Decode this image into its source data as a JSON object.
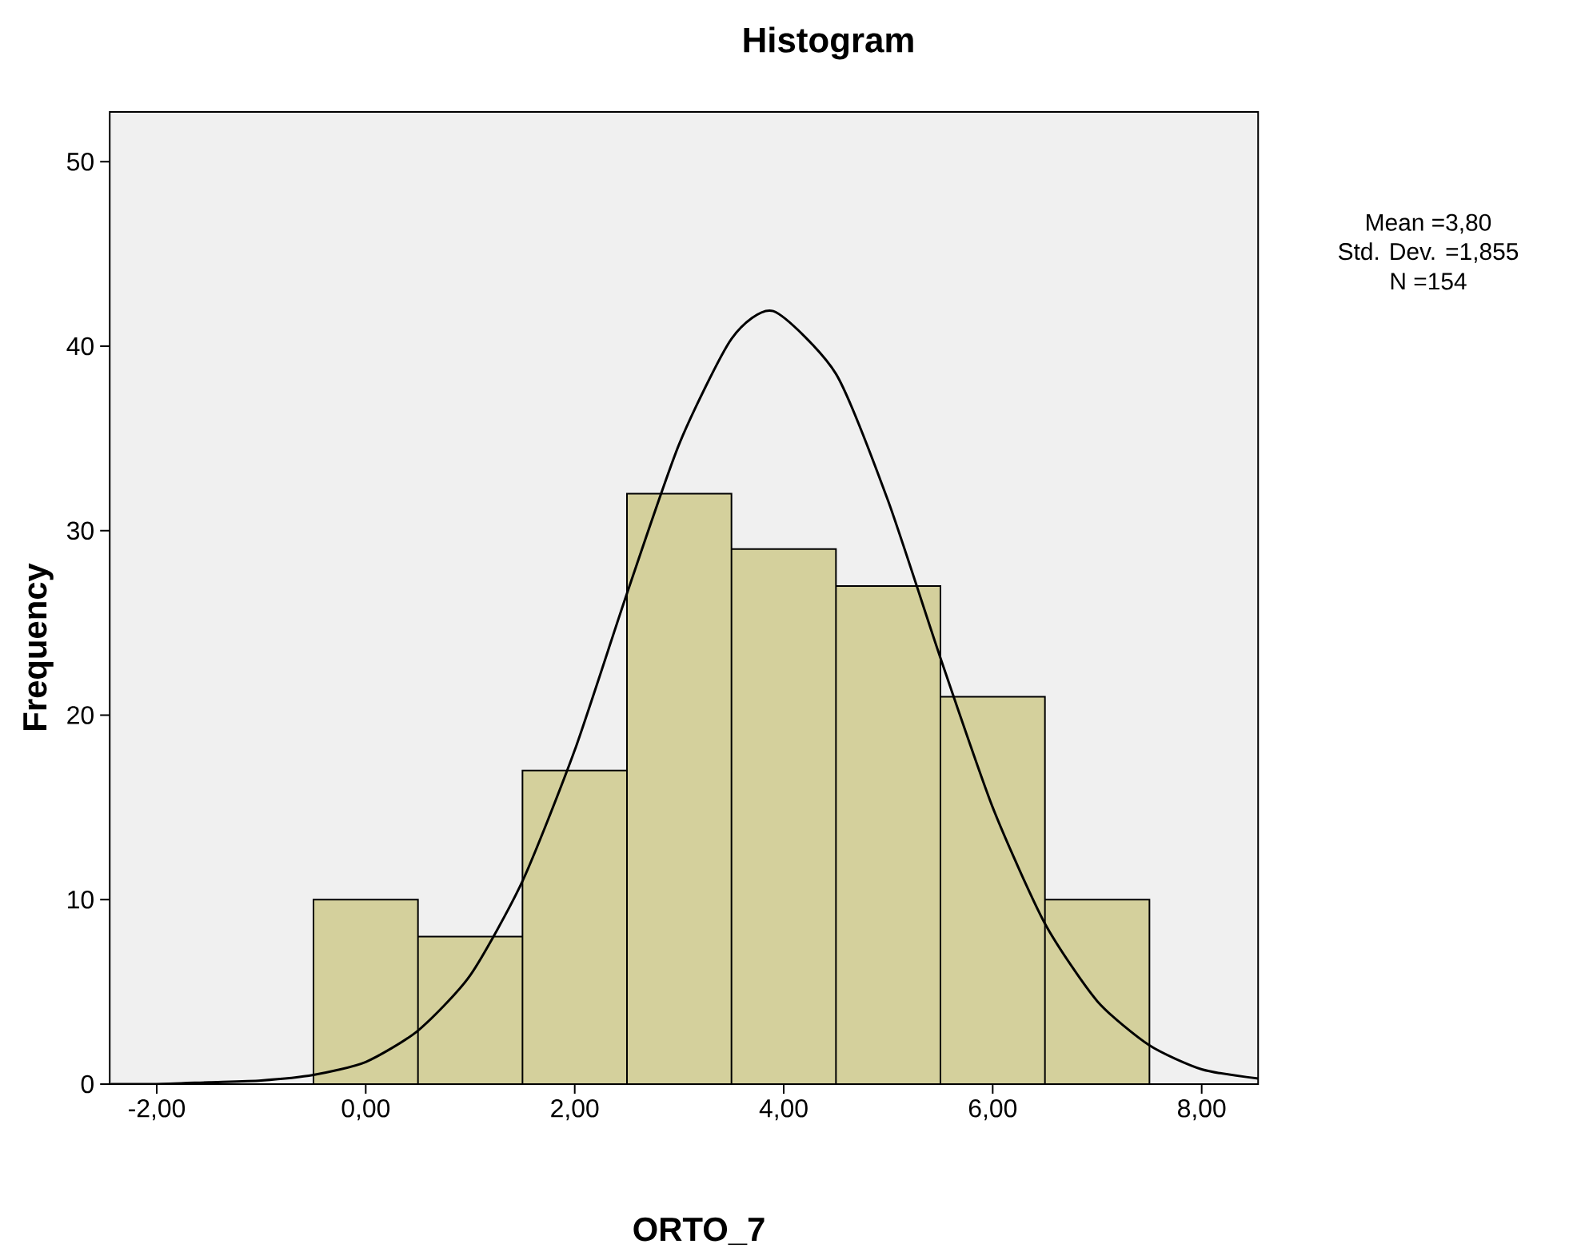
{
  "chart_data": {
    "type": "histogram",
    "title": "Histogram",
    "xlabel": "ORTO_7",
    "ylabel": "Frequency",
    "bins": [
      -0.5,
      0.5,
      1.5,
      2.5,
      3.5,
      4.5,
      5.5,
      6.5,
      7.5
    ],
    "values": [
      10,
      8,
      17,
      32,
      29,
      27,
      21,
      10
    ],
    "color": "#d4d09c",
    "series": [
      {
        "type": "line",
        "color": "#000000",
        "x": [
          -2.44,
          -2,
          -1.5,
          -1,
          -0.5,
          0,
          0.5,
          1,
          1.5,
          2,
          2.5,
          3,
          3.5,
          3.9,
          4.5,
          5,
          5.5,
          6,
          6.5,
          7,
          7.5,
          8,
          8.54
        ],
        "values": [
          0.0,
          0.0,
          0.1,
          0.2,
          0.5,
          1.2,
          2.9,
          5.9,
          11.0,
          18.1,
          26.6,
          34.7,
          40.4,
          41.9,
          38.5,
          31.6,
          23.1,
          15.0,
          8.7,
          4.5,
          2.1,
          0.8,
          0.3
        ]
      }
    ],
    "xlim": [
      -2.45,
      8.54
    ],
    "ylim": [
      0,
      52.7
    ],
    "xticks": [
      {
        "value": -2,
        "label": "-2,00"
      },
      {
        "value": 0,
        "label": "0,00"
      },
      {
        "value": 2,
        "label": "2,00"
      },
      {
        "value": 4,
        "label": "4,00"
      },
      {
        "value": 6,
        "label": "6,00"
      },
      {
        "value": 8,
        "label": "8,00"
      }
    ],
    "yticks": [
      0,
      10,
      20,
      30,
      40,
      50
    ],
    "grid": false,
    "annotations": [
      "Mean =3,80",
      "Std. Dev. =1,855",
      "N =154"
    ]
  }
}
